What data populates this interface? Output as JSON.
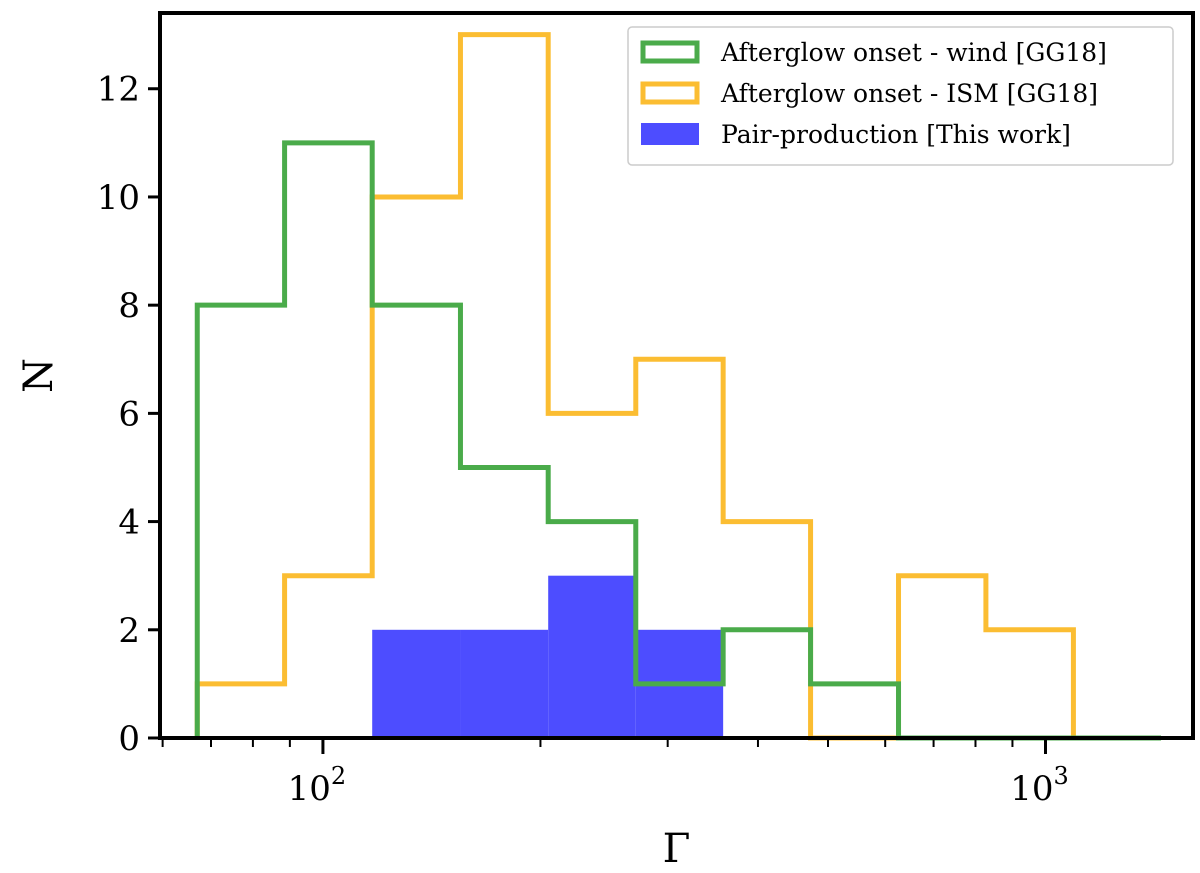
{
  "chart_data": {
    "type": "histogram",
    "xlabel": "Γ",
    "ylabel": "N",
    "xscale": "log",
    "xlim": [
      59.5,
      1600
    ],
    "ylim": [
      0,
      13.4
    ],
    "yticks": [
      0,
      2,
      4,
      6,
      8,
      10,
      12
    ],
    "xticks_major": [
      {
        "value": 100,
        "base": "10",
        "exp": "2"
      },
      {
        "value": 1000,
        "base": "10",
        "exp": "3"
      }
    ],
    "grid": false,
    "legend_position": "top-right",
    "bin_edges": [
      67,
      88.5,
      117,
      155,
      205,
      271,
      358,
      473,
      626,
      827,
      1093,
      1445
    ],
    "series": [
      {
        "name": "Afterglow onset - wind [GG18]",
        "style": "step",
        "color": "#4aab4a",
        "counts": [
          8,
          11,
          8,
          5,
          4,
          1,
          2,
          1,
          0,
          0,
          0
        ]
      },
      {
        "name": "Afterglow onset - ISM [GG18]",
        "style": "step",
        "color": "#fbbd32",
        "counts": [
          1,
          3,
          10,
          13,
          6,
          7,
          4,
          0,
          3,
          2,
          0
        ]
      },
      {
        "name": "Pair-production [This work]",
        "style": "filled",
        "color": "#4d4dff",
        "counts": [
          0,
          0,
          2,
          2,
          3,
          2,
          0,
          0,
          0,
          0,
          0
        ]
      }
    ]
  }
}
